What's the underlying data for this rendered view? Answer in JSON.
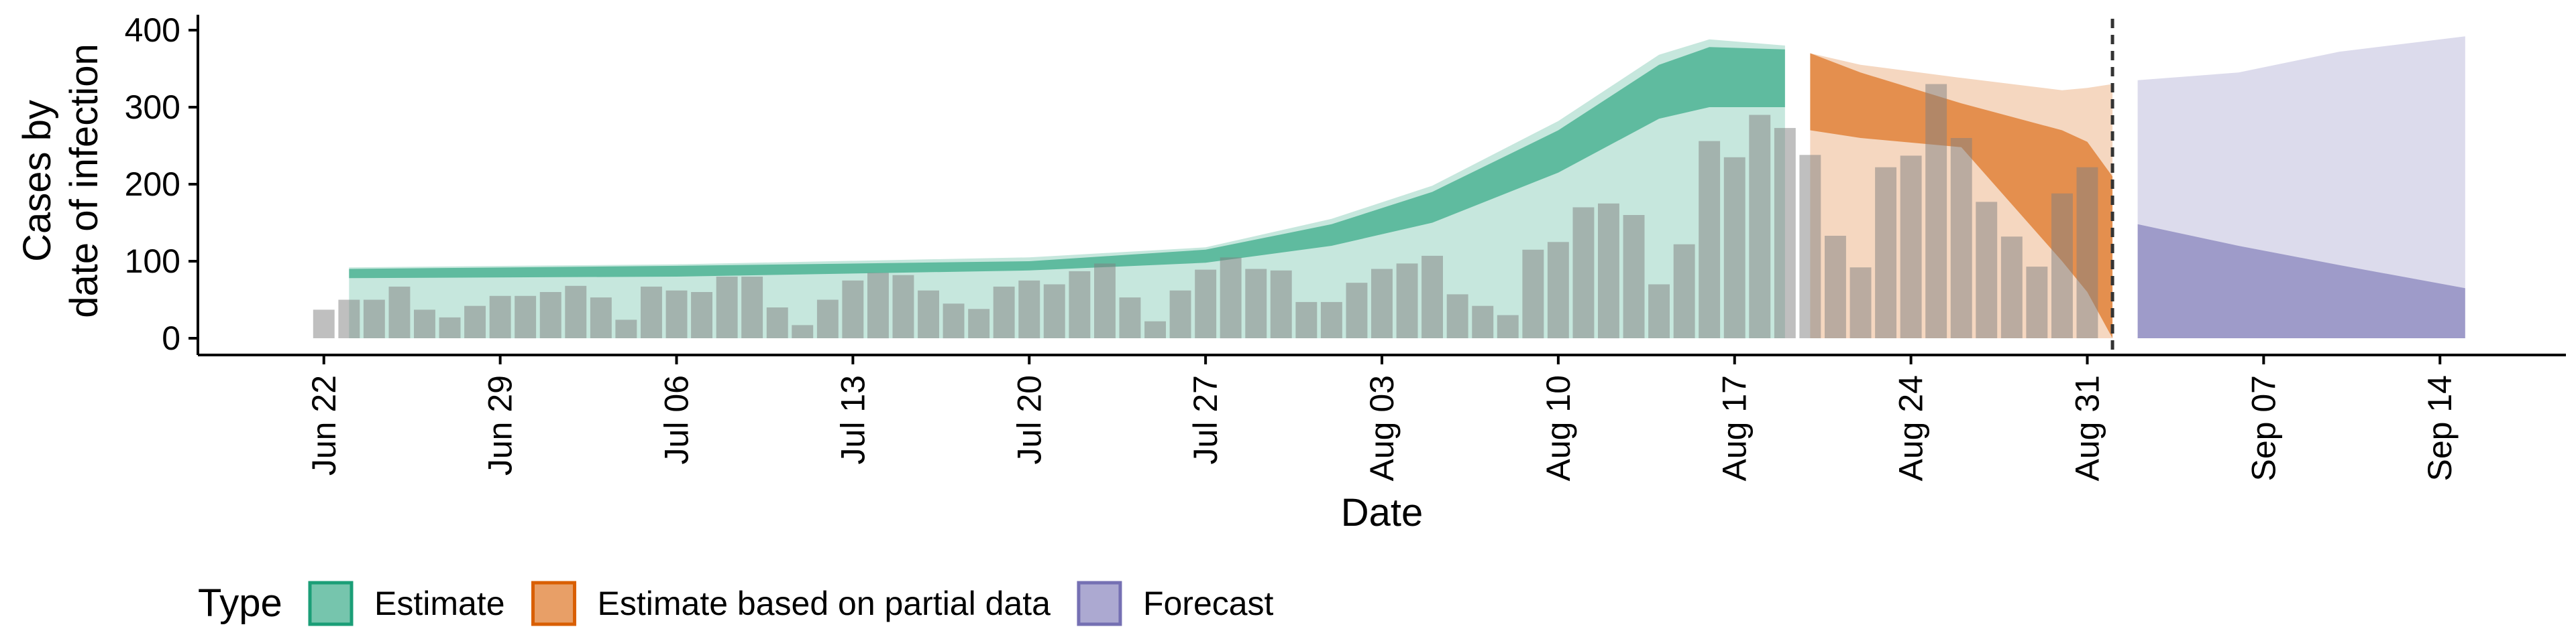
{
  "chart_data": {
    "type": "area",
    "title": "",
    "xlabel": "Date",
    "ylabel": [
      "Cases by",
      "date of infection"
    ],
    "ylim": [
      0,
      410
    ],
    "xlim": [
      "2020-06-17",
      "2020-09-19"
    ],
    "yticks": [
      0,
      100,
      200,
      300,
      400
    ],
    "xticks": [
      {
        "date": "2020-06-22",
        "label": "Jun 22"
      },
      {
        "date": "2020-06-29",
        "label": "Jun 29"
      },
      {
        "date": "2020-07-06",
        "label": "Jul 06"
      },
      {
        "date": "2020-07-13",
        "label": "Jul 13"
      },
      {
        "date": "2020-07-20",
        "label": "Jul 20"
      },
      {
        "date": "2020-07-27",
        "label": "Jul 27"
      },
      {
        "date": "2020-08-03",
        "label": "Aug 03"
      },
      {
        "date": "2020-08-10",
        "label": "Aug 10"
      },
      {
        "date": "2020-08-17",
        "label": "Aug 17"
      },
      {
        "date": "2020-08-24",
        "label": "Aug 24"
      },
      {
        "date": "2020-08-31",
        "label": "Aug 31"
      },
      {
        "date": "2020-09-07",
        "label": "Sep 07"
      },
      {
        "date": "2020-09-14",
        "label": "Sep 14"
      }
    ],
    "grid": false,
    "legend": {
      "title": "Type",
      "placement": "bottom-left",
      "items": [
        {
          "label": "Estimate",
          "color": "#1b9e77"
        },
        {
          "label": "Estimate based on partial data",
          "color": "#d95f02"
        },
        {
          "label": "Forecast",
          "color": "#7570b3"
        }
      ]
    },
    "bar_color": "#808080",
    "vline_date": "2020-09-01",
    "bars": {
      "start": "2020-06-22",
      "values": [
        37,
        50,
        50,
        67,
        37,
        27,
        42,
        55,
        55,
        60,
        68,
        53,
        24,
        67,
        62,
        60,
        80,
        80,
        40,
        17,
        50,
        75,
        85,
        82,
        62,
        45,
        38,
        67,
        75,
        70,
        87,
        97,
        53,
        22,
        62,
        89,
        105,
        90,
        88,
        47,
        47,
        72,
        90,
        97,
        107,
        57,
        42,
        30,
        115,
        125,
        170,
        175,
        160,
        70,
        122,
        256,
        235,
        290,
        273,
        238,
        133,
        92,
        222,
        237,
        330,
        260,
        177,
        132,
        93,
        188,
        222
      ]
    },
    "series": [
      {
        "name": "Estimate",
        "start": "2020-06-23",
        "end": "2020-08-19",
        "outer_low": [
          0,
          0,
          0
        ],
        "outer_high": [
          92,
          162,
          383
        ],
        "inner_low": [
          78,
          132,
          300
        ],
        "inner_high": [
          90,
          158,
          375
        ],
        "shape": [
          [
            "2020-06-23",
            0,
            90,
            78,
            92
          ],
          [
            "2020-07-06",
            0,
            94,
            80,
            96
          ],
          [
            "2020-07-20",
            0,
            100,
            88,
            105
          ],
          [
            "2020-07-27",
            0,
            115,
            98,
            118
          ],
          [
            "2020-08-01",
            0,
            148,
            120,
            155
          ],
          [
            "2020-08-05",
            0,
            190,
            150,
            198
          ],
          [
            "2020-08-10",
            0,
            270,
            215,
            282
          ],
          [
            "2020-08-14",
            0,
            355,
            285,
            368
          ],
          [
            "2020-08-16",
            0,
            378,
            300,
            388
          ],
          [
            "2020-08-19",
            0,
            375,
            300,
            380
          ]
        ]
      },
      {
        "name": "Estimate based on partial data",
        "start": "2020-08-20",
        "end": "2020-09-01",
        "shape": [
          [
            "2020-08-20",
            0,
            370,
            270,
            370
          ],
          [
            "2020-08-22",
            0,
            345,
            260,
            355
          ],
          [
            "2020-08-26",
            0,
            305,
            248,
            338
          ],
          [
            "2020-08-30",
            0,
            270,
            100,
            322
          ],
          [
            "2020-08-31",
            0,
            255,
            60,
            325
          ],
          [
            "2020-09-01",
            0,
            210,
            0,
            330
          ]
        ]
      },
      {
        "name": "Forecast",
        "start": "2020-09-02",
        "end": "2020-09-15",
        "shape": [
          [
            "2020-09-02",
            0,
            148,
            0,
            335
          ],
          [
            "2020-09-06",
            0,
            120,
            0,
            345
          ],
          [
            "2020-09-10",
            0,
            95,
            0,
            372
          ],
          [
            "2020-09-15",
            0,
            65,
            0,
            392
          ]
        ]
      }
    ]
  }
}
